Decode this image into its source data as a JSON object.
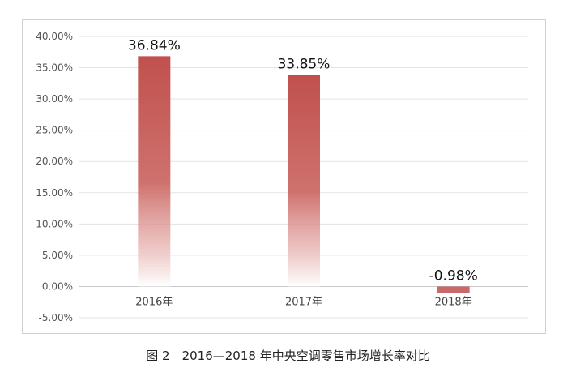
{
  "caption": "图 2　2016—2018 年中央空调零售市场增长率对比",
  "chart_data": {
    "type": "bar",
    "categories": [
      "2016年",
      "2017年",
      "2018年"
    ],
    "values": [
      36.84,
      33.85,
      -0.98
    ],
    "data_labels": [
      "36.84%",
      "33.85%",
      "-0.98%"
    ],
    "ylim": [
      -5,
      40
    ],
    "yticks": [
      40,
      35,
      30,
      25,
      20,
      15,
      10,
      5,
      0,
      -5
    ],
    "ytick_labels": [
      "40.00%",
      "35.00%",
      "30.00%",
      "25.00%",
      "20.00%",
      "15.00%",
      "10.00%",
      "5.00%",
      "0.00%",
      "-5.00%"
    ],
    "grid": true,
    "bar_color": "#c0504d",
    "title": "",
    "xlabel": "",
    "ylabel": ""
  }
}
